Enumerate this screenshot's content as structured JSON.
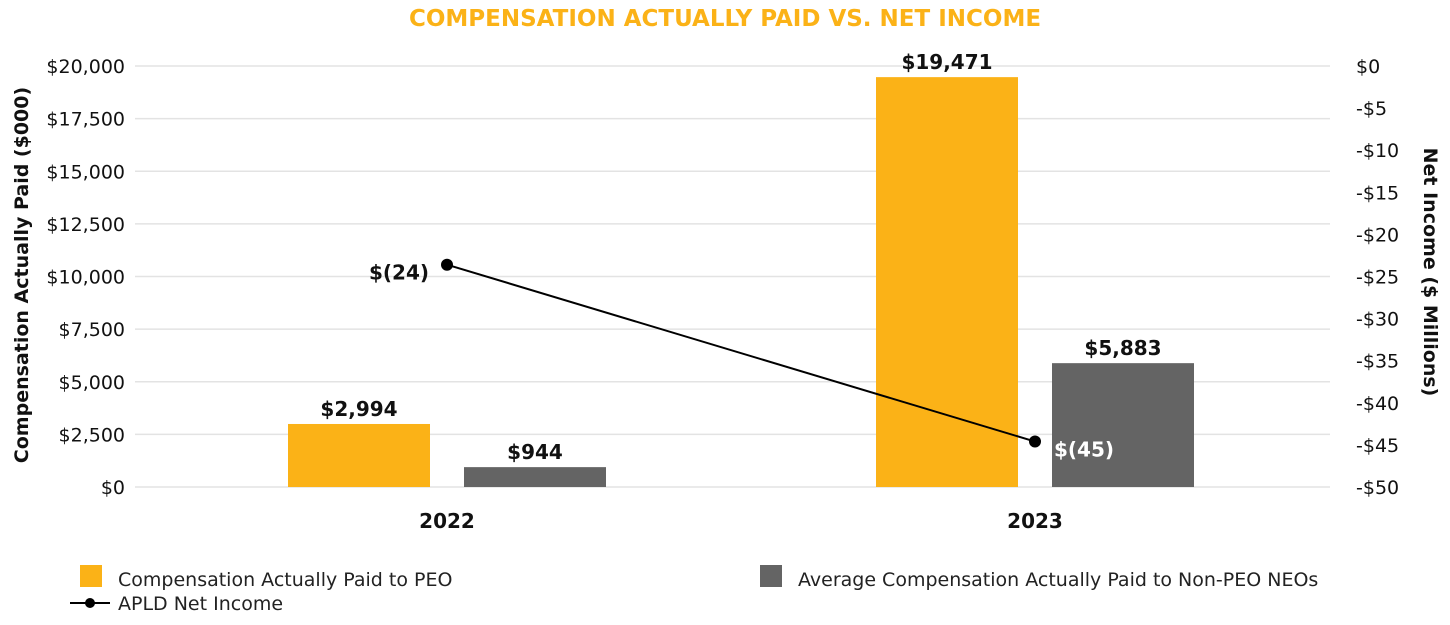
{
  "chart_data": {
    "type": "bar",
    "title": "COMPENSATION ACTUALLY PAID VS. NET INCOME",
    "categories": [
      "2022",
      "2023"
    ],
    "ylabel": "Compensation Actually Paid ($000)",
    "y2label": "Net Income ($ Millions)",
    "ylim": [
      0,
      20000
    ],
    "y2lim": [
      -50,
      0
    ],
    "yticks": [
      "$0",
      "$2,500",
      "$5,000",
      "$7,500",
      "$10,000",
      "$12,500",
      "$15,000",
      "$17,500",
      "$20,000"
    ],
    "y2ticks": [
      "-$50",
      "-$45",
      "-$40",
      "-$35",
      "-$30",
      "-$25",
      "-$20",
      "-$15",
      "-$10",
      "-$5",
      "$0"
    ],
    "grid": true,
    "legend_position": "bottom",
    "series": [
      {
        "name": "Compensation Actually Paid to PEO",
        "type": "bar",
        "axis": "left",
        "color": "#FBB217",
        "values": [
          2994,
          19471
        ],
        "labels": [
          "$2,994",
          "$19,471"
        ]
      },
      {
        "name": "Average Compensation Actually Paid to Non-PEO NEOs",
        "type": "bar",
        "axis": "left",
        "color": "#646464",
        "values": [
          944,
          5883
        ],
        "labels": [
          "$944",
          "$5,883"
        ]
      },
      {
        "name": "APLD Net Income",
        "type": "line",
        "axis": "right",
        "color": "#000000",
        "values": [
          -23.6,
          -44.6
        ],
        "labels": [
          "$(24)",
          "$(45)"
        ]
      }
    ],
    "colors": {
      "title": "#FBB217",
      "grid": "#E3E3E3"
    }
  }
}
